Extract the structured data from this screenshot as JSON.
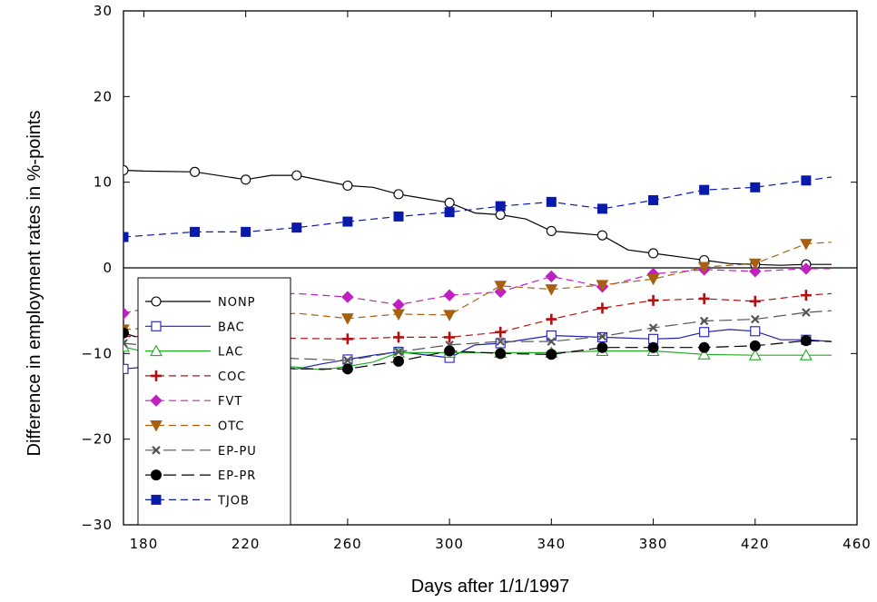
{
  "chart_data": {
    "type": "line",
    "title": "",
    "xlabel": "Days after 1/1/1997",
    "ylabel": "Difference in employment rates in %-points",
    "xlim": [
      172,
      460
    ],
    "ylim": [
      -30,
      30
    ],
    "x_ticks": [
      180,
      220,
      260,
      300,
      340,
      380,
      420,
      460
    ],
    "y_ticks": [
      30,
      20,
      10,
      0,
      -10,
      -20,
      -30
    ],
    "y_tick_labels": [
      "30",
      "20",
      "10",
      "0",
      "−10",
      "−20",
      "−30"
    ],
    "grid": false,
    "legend_position": "bottom-left",
    "zero_line": true,
    "series": [
      {
        "name": "NONP",
        "color": "#000000",
        "dash": "solid",
        "marker": "circle-open",
        "x": [
          172,
          180,
          200,
          220,
          230,
          240,
          260,
          270,
          280,
          300,
          310,
          320,
          330,
          340,
          360,
          370,
          380,
          400,
          410,
          420,
          430,
          440,
          450
        ],
        "y": [
          11.4,
          11.3,
          11.2,
          10.3,
          10.8,
          10.8,
          9.6,
          9.4,
          8.6,
          7.6,
          6.4,
          6.2,
          5.7,
          4.3,
          3.8,
          2.1,
          1.7,
          0.9,
          0.5,
          0.4,
          0.3,
          0.4,
          0.4
        ],
        "marker_x": [
          172,
          200,
          220,
          240,
          260,
          280,
          300,
          320,
          340,
          360,
          380,
          400,
          420,
          440
        ]
      },
      {
        "name": "BAC",
        "color": "#1f1fb4",
        "dash": "solid",
        "marker": "square-open",
        "x": [
          172,
          180,
          200,
          220,
          240,
          250,
          260,
          270,
          280,
          300,
          310,
          320,
          340,
          360,
          380,
          390,
          400,
          410,
          420,
          430,
          440,
          450
        ],
        "y": [
          -11.8,
          -11.6,
          -11.4,
          -11.5,
          -11.8,
          -11.2,
          -10.7,
          -10.2,
          -9.8,
          -10.5,
          -9.0,
          -8.8,
          -7.9,
          -8.1,
          -8.3,
          -8.2,
          -7.5,
          -7.2,
          -7.4,
          -8.4,
          -8.4,
          -8.6
        ],
        "marker_x": [
          172,
          260,
          280,
          300,
          320,
          340,
          360,
          380,
          400,
          420,
          440
        ]
      },
      {
        "name": "LAC",
        "color": "#22aa22",
        "dash": "solid",
        "marker": "triangle-open",
        "x": [
          172,
          180,
          200,
          220,
          240,
          250,
          260,
          270,
          280,
          300,
          320,
          340,
          360,
          380,
          400,
          420,
          440,
          450
        ],
        "y": [
          -9.2,
          -9.8,
          -10.8,
          -11.2,
          -11.6,
          -11.9,
          -11.5,
          -11.0,
          -9.9,
          -9.9,
          -9.9,
          -9.9,
          -9.7,
          -9.7,
          -10.1,
          -10.2,
          -10.2,
          -10.2
        ],
        "marker_x": [
          172,
          280,
          300,
          320,
          340,
          360,
          380,
          400,
          420,
          440
        ]
      },
      {
        "name": "COC",
        "color": "#b01010",
        "dash": "dash",
        "marker": "plus",
        "x": [
          172,
          260,
          280,
          300,
          320,
          340,
          360,
          380,
          400,
          420,
          440,
          450
        ],
        "y": [
          -8.0,
          -8.3,
          -8.1,
          -8.1,
          -7.5,
          -6.0,
          -4.7,
          -3.8,
          -3.6,
          -3.9,
          -3.2,
          -3.0
        ],
        "marker_x": [
          260,
          280,
          300,
          320,
          340,
          360,
          380,
          400,
          420,
          440
        ]
      },
      {
        "name": "FVT",
        "color": "#c020c0",
        "dash": "dash",
        "marker": "diamond",
        "x": [
          172,
          180,
          200,
          220,
          240,
          260,
          280,
          300,
          320,
          340,
          360,
          380,
          400,
          420,
          440,
          450
        ],
        "y": [
          -5.3,
          -4.8,
          -3.8,
          -3.2,
          -3.0,
          -3.4,
          -4.3,
          -3.2,
          -2.8,
          -1.0,
          -2.2,
          -0.7,
          -0.2,
          -0.4,
          -0.1,
          -0.1
        ],
        "marker_x": [
          172,
          260,
          280,
          300,
          320,
          340,
          360,
          380,
          400,
          420,
          440
        ]
      },
      {
        "name": "OTC",
        "color": "#a86010",
        "dash": "dash",
        "marker": "triangle-down",
        "x": [
          172,
          200,
          220,
          240,
          260,
          280,
          300,
          320,
          340,
          360,
          380,
          400,
          420,
          440,
          450
        ],
        "y": [
          -7.2,
          -6.8,
          -5.8,
          -5.3,
          -5.9,
          -5.4,
          -5.5,
          -2.1,
          -2.5,
          -2.0,
          -1.3,
          0.1,
          0.5,
          2.8,
          3.0
        ],
        "marker_x": [
          172,
          260,
          280,
          300,
          320,
          340,
          360,
          380,
          400,
          420,
          440
        ]
      },
      {
        "name": "EP-PU",
        "color": "#555555",
        "dash": "longdash",
        "marker": "x",
        "x": [
          172,
          200,
          220,
          240,
          260,
          280,
          300,
          320,
          340,
          360,
          380,
          400,
          420,
          440,
          450
        ],
        "y": [
          -8.8,
          -9.6,
          -10.2,
          -10.6,
          -10.8,
          -9.8,
          -9.0,
          -8.6,
          -8.6,
          -8.0,
          -7.0,
          -6.2,
          -6.0,
          -5.2,
          -5.0
        ],
        "marker_x": [
          172,
          260,
          280,
          300,
          320,
          340,
          360,
          380,
          400,
          420,
          440
        ]
      },
      {
        "name": "EP-PR",
        "color": "#000000",
        "dash": "longdash",
        "marker": "circle-filled",
        "x": [
          172,
          200,
          220,
          240,
          260,
          280,
          300,
          320,
          340,
          360,
          380,
          400,
          420,
          440,
          450
        ],
        "y": [
          -7.6,
          -10.2,
          -11.3,
          -11.8,
          -11.8,
          -10.9,
          -9.7,
          -10.0,
          -10.1,
          -9.3,
          -9.3,
          -9.3,
          -9.1,
          -8.5,
          -8.6
        ],
        "marker_x": [
          172,
          260,
          280,
          300,
          320,
          340,
          360,
          380,
          400,
          420,
          440
        ]
      },
      {
        "name": "TJOB",
        "color": "#0a1aa8",
        "dash": "dash",
        "marker": "square-filled",
        "x": [
          172,
          200,
          220,
          240,
          260,
          280,
          300,
          320,
          340,
          360,
          380,
          400,
          420,
          440,
          450
        ],
        "y": [
          3.6,
          4.2,
          4.2,
          4.7,
          5.4,
          6.0,
          6.5,
          7.2,
          7.7,
          6.9,
          7.9,
          9.1,
          9.4,
          10.2,
          10.6
        ],
        "marker_x": [
          172,
          200,
          220,
          240,
          260,
          280,
          300,
          320,
          340,
          360,
          380,
          400,
          420,
          440
        ]
      }
    ]
  }
}
